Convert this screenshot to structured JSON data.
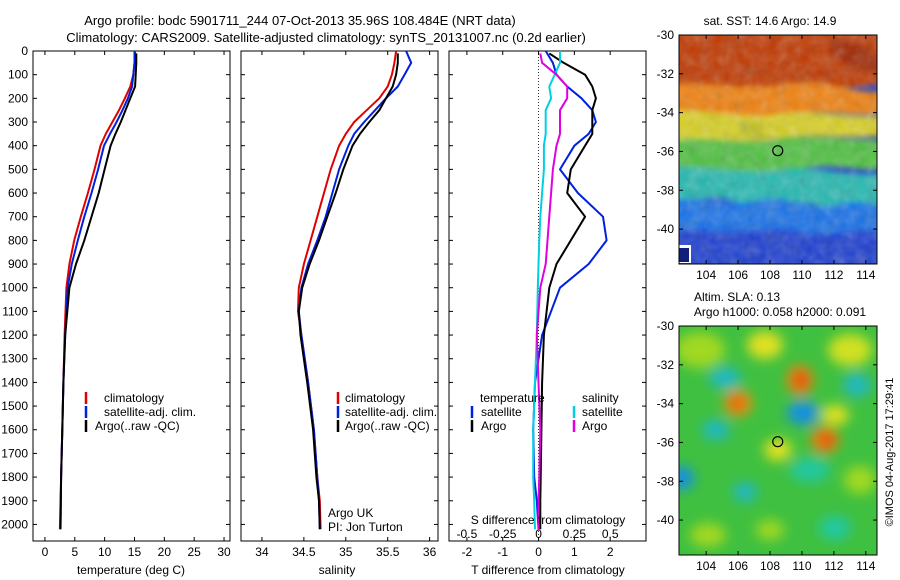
{
  "figure": {
    "title_line1": "Argo profile: bodc 5901711_244 07-Oct-2013 35.96S 108.484E (NRT data)",
    "title_line2": "Climatology: CARS2009. Satellite-adjusted climatology: synTS_20131007.nc (0.2d earlier)",
    "side_label": "©IMOS 04-Aug-2017 17:29:41"
  },
  "colors": {
    "climatology": "#e00000",
    "satellite": "#0020e0",
    "argo": "#000000",
    "sal_satellite": "#00d0e0",
    "sal_argo": "#e000e0"
  },
  "chart_data": [
    {
      "id": "temperature",
      "type": "line",
      "xlabel": "temperature (deg C)",
      "xlim": [
        -2,
        31
      ],
      "ylim": [
        2070,
        0
      ],
      "x_ticks": [
        0,
        5,
        10,
        15,
        20,
        25,
        30
      ],
      "y_ticks": [
        0,
        100,
        200,
        300,
        400,
        500,
        600,
        700,
        800,
        900,
        1000,
        1100,
        1200,
        1300,
        1400,
        1500,
        1600,
        1700,
        1800,
        1900,
        2000
      ],
      "legend": [
        "climatology",
        "satellite-adj. clim.",
        "Argo(..raw -QC)"
      ],
      "series": [
        {
          "name": "climatology",
          "color": "#e00000",
          "x": [
            15.1,
            15.0,
            14.8,
            14.3,
            13.4,
            12.4,
            11.3,
            10.2,
            9.3,
            8.3,
            7.2,
            6.0,
            4.9,
            4.1,
            3.6,
            3.3,
            3.1,
            2.9,
            2.7,
            2.5
          ],
          "y": [
            0,
            50,
            100,
            150,
            200,
            250,
            300,
            350,
            400,
            500,
            600,
            700,
            800,
            900,
            1000,
            1200,
            1400,
            1600,
            1800,
            2020
          ]
        },
        {
          "name": "satellite-adj. clim.",
          "color": "#0020e0",
          "x": [
            15.0,
            15.0,
            14.8,
            14.6,
            13.9,
            13.0,
            12.0,
            10.9,
            9.9,
            8.9,
            7.8,
            6.6,
            5.5,
            4.5,
            3.8,
            3.4,
            3.1,
            2.9,
            2.7,
            2.6
          ],
          "y": [
            0,
            50,
            100,
            150,
            200,
            250,
            300,
            350,
            400,
            500,
            600,
            700,
            800,
            900,
            1000,
            1200,
            1400,
            1600,
            1800,
            2020
          ]
        },
        {
          "name": "Argo(..raw -QC)",
          "color": "#000000",
          "x": [
            15.3,
            15.3,
            15.2,
            15.1,
            14.3,
            13.5,
            12.7,
            11.8,
            11.0,
            10.0,
            9.0,
            7.8,
            6.6,
            5.2,
            4.1,
            3.4,
            3.1,
            2.9,
            2.7,
            2.6
          ],
          "y": [
            10,
            50,
            100,
            150,
            200,
            250,
            300,
            350,
            400,
            500,
            600,
            700,
            800,
            900,
            1000,
            1200,
            1400,
            1600,
            1800,
            2020
          ]
        }
      ]
    },
    {
      "id": "salinity",
      "type": "line",
      "xlabel": "salinity",
      "xlim": [
        33.75,
        36.1
      ],
      "ylim": [
        2070,
        0
      ],
      "x_ticks": [
        34,
        34.5,
        35,
        35.5,
        36
      ],
      "legend": [
        "climatology",
        "satellite-adj. clim.",
        "Argo(..raw -QC)"
      ],
      "annotations": [
        "Argo UK",
        "PI: Jon Turton"
      ],
      "series": [
        {
          "name": "climatology",
          "color": "#e00000",
          "x": [
            35.6,
            35.58,
            35.55,
            35.5,
            35.4,
            35.25,
            35.1,
            35.0,
            34.92,
            34.82,
            34.74,
            34.66,
            34.58,
            34.5,
            34.44,
            34.43,
            34.47,
            34.55,
            34.62,
            34.66,
            34.69,
            34.7
          ],
          "y": [
            0,
            50,
            100,
            150,
            200,
            250,
            300,
            350,
            400,
            500,
            600,
            700,
            800,
            900,
            1000,
            1100,
            1200,
            1400,
            1600,
            1800,
            1900,
            2020
          ]
        },
        {
          "name": "satellite-adj. clim.",
          "color": "#0020e0",
          "x": [
            35.72,
            35.78,
            35.7,
            35.62,
            35.48,
            35.35,
            35.22,
            35.1,
            35.03,
            34.92,
            34.84,
            34.76,
            34.66,
            34.55,
            34.47,
            34.44,
            34.47,
            34.55,
            34.62,
            34.66,
            34.68,
            34.69
          ],
          "y": [
            0,
            50,
            100,
            150,
            200,
            250,
            300,
            350,
            400,
            500,
            600,
            700,
            800,
            900,
            1000,
            1100,
            1200,
            1400,
            1600,
            1800,
            1900,
            2020
          ]
        },
        {
          "name": "Argo(..raw -QC)",
          "color": "#000000",
          "x": [
            35.62,
            35.62,
            35.6,
            35.56,
            35.48,
            35.4,
            35.28,
            35.17,
            35.08,
            34.97,
            34.88,
            34.78,
            34.68,
            34.57,
            34.48,
            34.44,
            34.46,
            34.54,
            34.61,
            34.65,
            34.68,
            34.69
          ],
          "y": [
            10,
            50,
            100,
            150,
            200,
            250,
            300,
            350,
            400,
            500,
            600,
            700,
            800,
            900,
            1000,
            1100,
            1200,
            1400,
            1600,
            1800,
            1900,
            2020
          ]
        }
      ]
    },
    {
      "id": "difference",
      "type": "line",
      "xlabel": "T difference from climatology",
      "xlabel_top": "S difference from climatology",
      "xlim": [
        -2.5,
        3
      ],
      "ylim": [
        2070,
        0
      ],
      "x_ticks": [
        -2,
        -1,
        0,
        1,
        2
      ],
      "s_ticks": [
        -0.5,
        -0.25,
        0,
        0.25,
        0.5
      ],
      "s_ticks_labels": [
        "-0.5",
        "-0.25",
        "0",
        "0.25",
        "0.5"
      ],
      "legend_titles": [
        "temperature",
        "salinity"
      ],
      "legend": [
        "satellite",
        "Argo",
        "satellite",
        "Argo"
      ],
      "series": [
        {
          "name": "T satellite",
          "color": "#0020e0",
          "x": [
            0.2,
            0.4,
            0.5,
            0.8,
            1.2,
            1.5,
            1.6,
            1.4,
            1.0,
            0.6,
            1.1,
            1.8,
            1.9,
            1.4,
            0.6,
            0.1,
            -0.1,
            -0.15,
            -0.12,
            -0.05,
            0.0
          ],
          "y": [
            0,
            50,
            100,
            150,
            200,
            250,
            300,
            350,
            400,
            500,
            600,
            700,
            800,
            900,
            1000,
            1200,
            1400,
            1600,
            1800,
            1900,
            2020
          ]
        },
        {
          "name": "T Argo",
          "color": "#000000",
          "x": [
            0.3,
            0.7,
            1.3,
            1.5,
            1.6,
            1.5,
            1.5,
            1.5,
            1.3,
            0.9,
            0.8,
            1.3,
            0.9,
            0.5,
            0.3,
            0.15,
            0.1,
            0.08,
            0.06,
            0.05,
            0.05
          ],
          "y": [
            10,
            50,
            100,
            150,
            200,
            250,
            300,
            350,
            400,
            500,
            600,
            700,
            800,
            900,
            1000,
            1200,
            1400,
            1600,
            1800,
            1900,
            2020
          ]
        },
        {
          "name": "S satellite",
          "color": "#00d0e0",
          "x": [
            0.6,
            0.6,
            0.45,
            0.3,
            0.35,
            0.2,
            0.2,
            0.2,
            0.15,
            0.15,
            0.1,
            0.05,
            0.02,
            0.0,
            -0.02,
            -0.05,
            -0.1,
            -0.15,
            -0.15,
            -0.12,
            -0.1
          ],
          "y": [
            0,
            50,
            100,
            150,
            200,
            250,
            300,
            350,
            400,
            500,
            600,
            700,
            800,
            900,
            1000,
            1200,
            1400,
            1600,
            1800,
            1900,
            2020
          ]
        },
        {
          "name": "S Argo",
          "color": "#e000e0",
          "x": [
            0.05,
            0.1,
            0.5,
            0.8,
            0.8,
            0.6,
            0.6,
            0.6,
            0.5,
            0.4,
            0.35,
            0.3,
            0.25,
            0.2,
            0.05,
            -0.05,
            0.0,
            0.05,
            0.02,
            0.0,
            0.0
          ],
          "y": [
            10,
            50,
            100,
            150,
            200,
            250,
            300,
            350,
            400,
            500,
            600,
            700,
            800,
            900,
            1000,
            1200,
            1400,
            1600,
            1800,
            1900,
            2020
          ]
        }
      ]
    },
    {
      "id": "sst_map",
      "type": "heatmap",
      "title": "sat. SST: 14.6 Argo: 14.9",
      "xlim": [
        102.3,
        114.7
      ],
      "ylim": [
        -41.8,
        -30
      ],
      "x_ticks": [
        104,
        106,
        108,
        110,
        112,
        114
      ],
      "y_ticks": [
        -30,
        -32,
        -34,
        -36,
        -38,
        -40
      ],
      "marker": {
        "lon": 108.484,
        "lat": -35.96
      }
    },
    {
      "id": "sla_map",
      "type": "heatmap",
      "title": "Altim. SLA: 0.13",
      "subtitle": "Argo h1000: 0.058 h2000: 0.091",
      "xlim": [
        102.3,
        114.7
      ],
      "ylim": [
        -41.8,
        -30
      ],
      "x_ticks": [
        104,
        106,
        108,
        110,
        112,
        114
      ],
      "y_ticks": [
        -30,
        -32,
        -34,
        -36,
        -38,
        -40
      ],
      "marker": {
        "lon": 108.484,
        "lat": -35.96
      }
    }
  ]
}
